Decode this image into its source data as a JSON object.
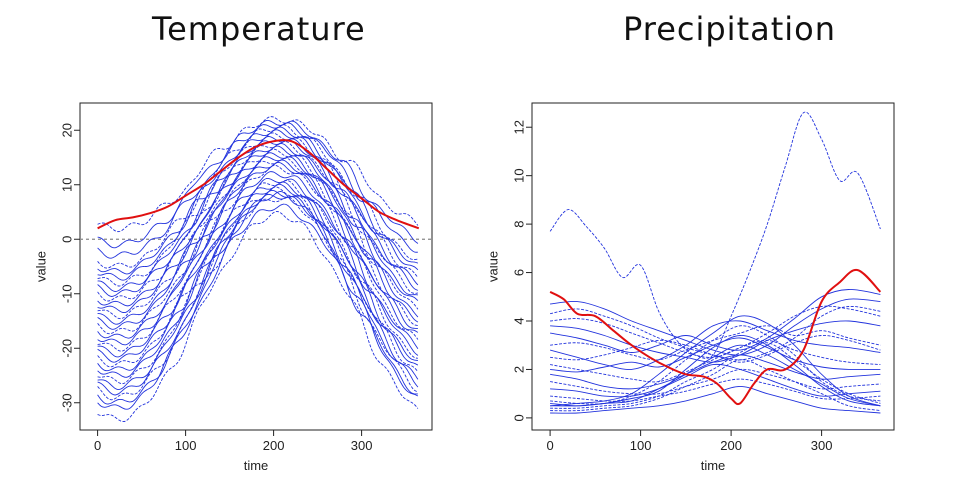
{
  "chart_data": [
    {
      "type": "line",
      "title": "Temperature",
      "xlabel": "time",
      "ylabel": "value",
      "xlim": [
        -20,
        380
      ],
      "ylim": [
        -35,
        25
      ],
      "xticks": [
        0,
        100,
        200,
        300
      ],
      "yticks": [
        -30,
        -20,
        -10,
        0,
        10,
        20
      ],
      "reference_line": {
        "y": 0,
        "style": "dashed",
        "color": "#888888"
      },
      "bundle_color": "#2233dd",
      "highlight_color": "#e01010",
      "bundle_peak_day": 205,
      "bundle_winter_values": [
        2,
        -1,
        -3,
        -5,
        -6,
        -7,
        -8,
        -9,
        -10,
        -11,
        -12,
        -13,
        -14,
        -15,
        -16,
        -17,
        -18,
        -19,
        -20,
        -21,
        -22,
        -23,
        -24,
        -25,
        -26,
        -27,
        -28,
        -29,
        -30,
        -31,
        -33
      ],
      "bundle_summer_values": [
        22,
        21.5,
        21,
        20.5,
        20,
        19.5,
        19,
        18.5,
        18,
        17.5,
        17,
        16.5,
        16,
        15.5,
        15,
        14.5,
        14,
        13.5,
        13,
        12,
        11,
        10.5,
        10,
        9.5,
        9,
        8.5,
        8,
        7.5,
        6,
        8.2,
        4.5
      ],
      "highlight": {
        "x": [
          0,
          20,
          40,
          60,
          80,
          100,
          120,
          140,
          160,
          180,
          200,
          220,
          240,
          260,
          280,
          300,
          320,
          340,
          365
        ],
        "y": [
          2,
          3.5,
          4,
          4.8,
          6,
          8,
          10,
          12.5,
          15,
          17,
          18,
          18,
          16,
          13,
          10,
          7.5,
          5,
          3.5,
          2
        ]
      }
    },
    {
      "type": "line",
      "title": "Precipitation",
      "xlabel": "time",
      "ylabel": "value",
      "xlim": [
        -20,
        380
      ],
      "ylim": [
        -0.5,
        13
      ],
      "xticks": [
        0,
        100,
        200,
        300
      ],
      "yticks": [
        0,
        2,
        4,
        6,
        8,
        10,
        12
      ],
      "bundle_color": "#2233dd",
      "highlight_color": "#e01010",
      "bundle_series": [
        {
          "x": [
            0,
            20,
            40,
            60,
            80,
            100,
            120,
            140,
            160,
            180,
            200,
            220,
            240,
            260,
            280,
            300,
            320,
            340,
            365
          ],
          "y": [
            7.7,
            8.6,
            7.9,
            7.0,
            5.8,
            6.3,
            4.4,
            3.2,
            2.6,
            2.6,
            4.2,
            6.0,
            8.0,
            10.4,
            12.6,
            11.5,
            9.8,
            10.1,
            7.8
          ]
        },
        {
          "x": [
            0,
            30,
            60,
            90,
            120,
            150,
            180,
            210,
            240,
            270,
            300,
            330,
            365
          ],
          "y": [
            0.5,
            0.5,
            0.6,
            0.7,
            1.2,
            1.8,
            2.5,
            3.0,
            2.6,
            2.0,
            1.4,
            0.8,
            0.5
          ]
        },
        {
          "x": [
            0,
            30,
            60,
            90,
            120,
            150,
            180,
            210,
            240,
            270,
            300,
            330,
            365
          ],
          "y": [
            0.4,
            0.4,
            0.5,
            0.6,
            0.9,
            1.5,
            2.0,
            2.7,
            3.1,
            2.4,
            1.6,
            1.0,
            0.6
          ]
        },
        {
          "x": [
            0,
            30,
            60,
            90,
            120,
            150,
            180,
            210,
            240,
            270,
            300,
            330,
            365
          ],
          "y": [
            0.6,
            0.5,
            0.6,
            0.8,
            1.1,
            2.0,
            2.9,
            3.4,
            3.0,
            2.2,
            1.3,
            0.7,
            0.5
          ]
        },
        {
          "x": [
            0,
            30,
            60,
            90,
            120,
            150,
            180,
            210,
            240,
            270,
            300,
            330,
            365
          ],
          "y": [
            0.3,
            0.3,
            0.4,
            0.5,
            0.8,
            1.3,
            1.8,
            2.4,
            2.0,
            1.5,
            1.0,
            0.5,
            0.3
          ]
        },
        {
          "x": [
            0,
            30,
            60,
            90,
            120,
            150,
            180,
            210,
            240,
            270,
            300,
            330,
            365
          ],
          "y": [
            4.7,
            4.8,
            4.5,
            4.0,
            3.6,
            3.2,
            2.8,
            2.6,
            3.0,
            3.8,
            4.5,
            4.9,
            4.8
          ]
        },
        {
          "x": [
            0,
            30,
            60,
            90,
            120,
            150,
            180,
            210,
            240,
            270,
            300,
            330,
            365
          ],
          "y": [
            4.3,
            4.5,
            4.2,
            3.8,
            3.3,
            2.9,
            2.6,
            2.4,
            2.7,
            3.3,
            4.2,
            4.6,
            4.4
          ]
        },
        {
          "x": [
            0,
            30,
            60,
            90,
            120,
            150,
            180,
            210,
            240,
            270,
            300,
            330,
            365
          ],
          "y": [
            3.8,
            3.7,
            3.4,
            3.0,
            2.7,
            2.5,
            2.3,
            2.6,
            3.2,
            3.6,
            3.9,
            4.0,
            3.8
          ]
        },
        {
          "x": [
            0,
            30,
            60,
            90,
            120,
            150,
            180,
            210,
            240,
            270,
            300,
            330,
            365
          ],
          "y": [
            3.0,
            3.1,
            2.9,
            2.6,
            2.4,
            2.8,
            3.2,
            3.5,
            3.8,
            3.4,
            3.6,
            3.3,
            3.0
          ]
        },
        {
          "x": [
            0,
            30,
            60,
            90,
            120,
            150,
            180,
            210,
            240,
            270,
            300,
            330,
            365
          ],
          "y": [
            2.8,
            2.5,
            2.2,
            2.0,
            2.4,
            3.0,
            3.8,
            4.0,
            3.6,
            3.2,
            3.0,
            2.9,
            2.7
          ]
        },
        {
          "x": [
            0,
            30,
            60,
            90,
            120,
            150,
            180,
            210,
            240,
            270,
            300,
            330,
            365
          ],
          "y": [
            2.2,
            2.0,
            1.8,
            1.6,
            1.5,
            1.9,
            2.4,
            2.9,
            3.2,
            2.8,
            2.5,
            2.3,
            2.2
          ]
        },
        {
          "x": [
            0,
            30,
            60,
            90,
            120,
            150,
            180,
            210,
            240,
            270,
            300,
            330,
            365
          ],
          "y": [
            1.8,
            1.6,
            1.3,
            1.2,
            1.4,
            1.8,
            2.3,
            2.6,
            2.3,
            1.9,
            1.6,
            1.7,
            1.8
          ]
        },
        {
          "x": [
            0,
            30,
            60,
            90,
            120,
            150,
            180,
            210,
            240,
            270,
            300,
            330,
            365
          ],
          "y": [
            1.5,
            1.3,
            1.1,
            1.0,
            1.0,
            1.3,
            1.6,
            2.0,
            1.8,
            1.5,
            1.2,
            1.3,
            1.4
          ]
        },
        {
          "x": [
            0,
            30,
            60,
            90,
            120,
            150,
            180,
            210,
            240,
            270,
            300,
            330,
            365
          ],
          "y": [
            1.2,
            1.1,
            0.9,
            0.9,
            1.2,
            1.7,
            2.2,
            2.0,
            1.6,
            1.2,
            0.9,
            1.0,
            1.1
          ]
        },
        {
          "x": [
            0,
            30,
            60,
            90,
            120,
            150,
            180,
            210,
            240,
            270,
            300,
            330,
            365
          ],
          "y": [
            0.9,
            0.8,
            0.7,
            0.7,
            0.9,
            1.1,
            1.4,
            1.6,
            1.4,
            1.1,
            0.8,
            0.8,
            0.9
          ]
        },
        {
          "x": [
            0,
            30,
            60,
            90,
            120,
            150,
            180,
            210,
            240,
            270,
            300,
            330,
            365
          ],
          "y": [
            3.5,
            3.3,
            3.0,
            2.7,
            3.0,
            3.4,
            3.0,
            2.8,
            3.3,
            4.1,
            5.0,
            5.3,
            5.1
          ]
        },
        {
          "x": [
            0,
            30,
            60,
            90,
            120,
            150,
            180,
            210,
            240,
            270,
            300,
            330,
            365
          ],
          "y": [
            2.5,
            2.4,
            2.6,
            2.9,
            3.2,
            3.0,
            2.6,
            2.3,
            2.6,
            3.1,
            3.4,
            3.2,
            2.8
          ]
        },
        {
          "x": [
            0,
            30,
            60,
            90,
            120,
            150,
            180,
            210,
            240,
            270,
            300,
            330,
            365
          ],
          "y": [
            2.0,
            1.9,
            2.1,
            2.3,
            2.1,
            2.5,
            3.0,
            3.3,
            2.9,
            2.4,
            2.1,
            2.0,
            2.0
          ]
        },
        {
          "x": [
            0,
            30,
            60,
            90,
            120,
            150,
            180,
            210,
            240,
            270,
            300,
            330,
            365
          ],
          "y": [
            0.7,
            0.6,
            0.6,
            0.9,
            1.5,
            2.4,
            3.2,
            3.8,
            3.4,
            2.6,
            1.5,
            0.9,
            0.7
          ]
        },
        {
          "x": [
            0,
            30,
            60,
            90,
            120,
            150,
            180,
            210,
            240,
            270,
            300,
            330,
            365
          ],
          "y": [
            0.5,
            0.6,
            0.7,
            1.0,
            1.8,
            2.7,
            3.5,
            4.2,
            3.9,
            3.0,
            1.8,
            0.9,
            0.5
          ]
        },
        {
          "x": [
            0,
            30,
            60,
            90,
            120,
            150,
            180,
            210,
            240,
            270,
            300,
            330,
            365
          ],
          "y": [
            4.0,
            4.1,
            3.9,
            3.5,
            3.1,
            2.7,
            2.5,
            2.9,
            3.5,
            4.2,
            4.6,
            4.5,
            4.2
          ]
        },
        {
          "x": [
            0,
            30,
            60,
            90,
            120,
            150,
            180,
            210,
            240,
            270,
            300,
            330,
            365
          ],
          "y": [
            0.2,
            0.2,
            0.3,
            0.4,
            0.5,
            0.7,
            1.0,
            1.3,
            1.0,
            0.7,
            0.4,
            0.3,
            0.2
          ]
        }
      ],
      "highlight": {
        "x": [
          0,
          15,
          30,
          50,
          70,
          90,
          110,
          130,
          150,
          170,
          185,
          200,
          210,
          225,
          240,
          260,
          280,
          300,
          320,
          340,
          365
        ],
        "y": [
          5.2,
          4.9,
          4.3,
          4.2,
          3.6,
          3.0,
          2.5,
          2.1,
          1.8,
          1.7,
          1.4,
          0.8,
          0.6,
          1.4,
          2.0,
          2.0,
          2.8,
          4.8,
          5.6,
          6.1,
          5.2
        ]
      }
    }
  ]
}
